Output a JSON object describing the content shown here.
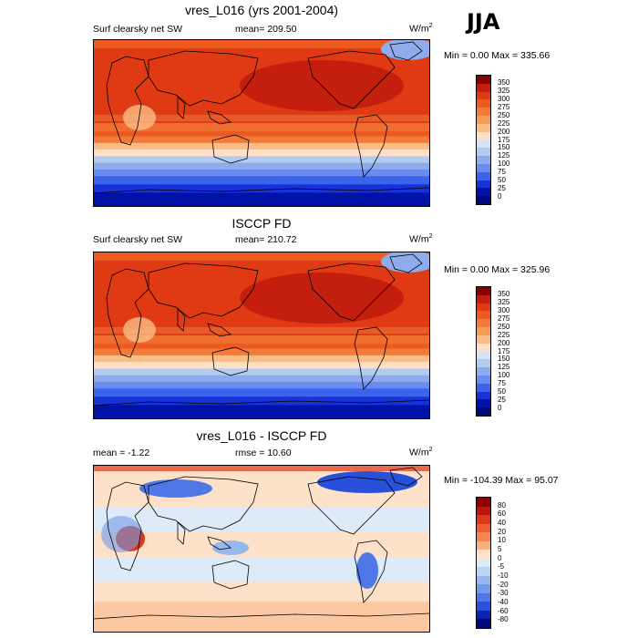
{
  "season": "JJA",
  "units_base": "W/m",
  "units_exp": "2",
  "panels": [
    {
      "title": "vres_L016 (yrs 2001-2004)",
      "left_label": "Surf clearsky net SW",
      "center_label": "mean= 209.50",
      "minmax": "Min =   0.00 Max = 335.66",
      "map_kind": "field",
      "colorbar_ticks": [
        "350",
        "325",
        "300",
        "275",
        "250",
        "225",
        "200",
        "175",
        "150",
        "125",
        "100",
        "75",
        "50",
        "25",
        "0"
      ]
    },
    {
      "title": "ISCCP FD",
      "left_label": "Surf clearsky net SW",
      "center_label": "mean= 210.72",
      "minmax": "Min =   0.00 Max = 325.96",
      "map_kind": "field",
      "colorbar_ticks": [
        "350",
        "325",
        "300",
        "275",
        "250",
        "225",
        "200",
        "175",
        "150",
        "125",
        "100",
        "75",
        "50",
        "25",
        "0"
      ]
    },
    {
      "title": "vres_L016 - ISCCP FD",
      "left_label": "mean =  -1.22",
      "center_label": "rmse =  10.60",
      "minmax": "Min = -104.39 Max =  95.07",
      "map_kind": "diff",
      "colorbar_ticks": [
        "80",
        "60",
        "40",
        "20",
        "10",
        "5",
        "0",
        "-5",
        "-10",
        "-20",
        "-30",
        "-40",
        "-60",
        "-80"
      ]
    }
  ],
  "colors": {
    "field_scale": [
      "#8b0000",
      "#c41e0e",
      "#df3a13",
      "#ec5a20",
      "#f27a3a",
      "#f69c5a",
      "#f9bd86",
      "#fde0c7",
      "#d6e3f6",
      "#b4cbf0",
      "#8eaceb",
      "#6a8cf0",
      "#3b64ea",
      "#1632d8",
      "#0012a8",
      "#00087a"
    ],
    "diff_scale": [
      "#8b0000",
      "#b8160e",
      "#dd3818",
      "#ef5e2c",
      "#f6864d",
      "#fab07e",
      "#fde1c9",
      "#ddeaf8",
      "#bcd3f3",
      "#97b8ee",
      "#7299ea",
      "#4f77e6",
      "#2850d8",
      "#0a25b0",
      "#00087a"
    ]
  }
}
